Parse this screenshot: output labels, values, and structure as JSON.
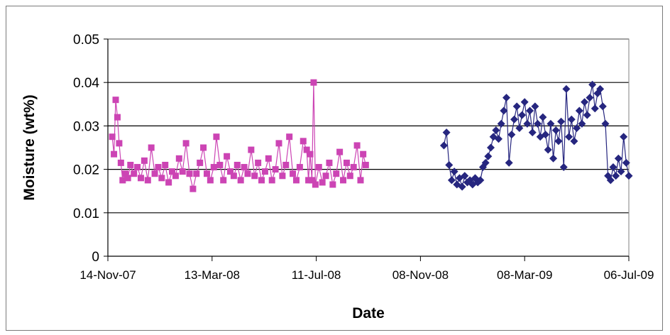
{
  "chart_data": {
    "type": "scatter",
    "title": "",
    "xlabel": "Date",
    "ylabel": "Moisture (wt%)",
    "ylim": [
      0,
      0.05
    ],
    "y_ticks": [
      "0",
      "0.01",
      "0.02",
      "0.03",
      "0.04",
      "0.05"
    ],
    "y_tick_values": [
      0,
      0.01,
      0.02,
      0.03,
      0.04,
      0.05
    ],
    "x_ticks": [
      "14-Nov-07",
      "13-Mar-08",
      "11-Jul-08",
      "08-Nov-08",
      "08-Mar-09",
      "06-Jul-09"
    ],
    "x_tick_values": [
      "2007-11-14",
      "2008-03-13",
      "2008-07-11",
      "2008-11-08",
      "2009-03-08",
      "2009-07-06"
    ],
    "xlim": [
      "2007-11-14",
      "2009-07-06"
    ],
    "grid": "horizontal major gridlines",
    "legend": "none",
    "series": [
      {
        "marker": "square",
        "color": "#cc44b4",
        "line": "thin connecting line",
        "points": [
          [
            "2007-11-19",
            0.0275
          ],
          [
            "2007-11-21",
            0.0235
          ],
          [
            "2007-11-23",
            0.036
          ],
          [
            "2007-11-25",
            0.032
          ],
          [
            "2007-11-27",
            0.026
          ],
          [
            "2007-11-29",
            0.0215
          ],
          [
            "2007-12-01",
            0.0175
          ],
          [
            "2007-12-04",
            0.019
          ],
          [
            "2007-12-07",
            0.018
          ],
          [
            "2007-12-10",
            0.021
          ],
          [
            "2007-12-14",
            0.019
          ],
          [
            "2007-12-18",
            0.0205
          ],
          [
            "2007-12-22",
            0.018
          ],
          [
            "2007-12-26",
            0.022
          ],
          [
            "2007-12-30",
            0.0175
          ],
          [
            "2008-01-03",
            0.025
          ],
          [
            "2008-01-07",
            0.019
          ],
          [
            "2008-01-11",
            0.0205
          ],
          [
            "2008-01-15",
            0.018
          ],
          [
            "2008-01-19",
            0.021
          ],
          [
            "2008-01-23",
            0.017
          ],
          [
            "2008-01-27",
            0.0195
          ],
          [
            "2008-01-31",
            0.0185
          ],
          [
            "2008-02-04",
            0.0225
          ],
          [
            "2008-02-08",
            0.0195
          ],
          [
            "2008-02-12",
            0.026
          ],
          [
            "2008-02-16",
            0.019
          ],
          [
            "2008-02-20",
            0.0155
          ],
          [
            "2008-02-24",
            0.019
          ],
          [
            "2008-02-28",
            0.0215
          ],
          [
            "2008-03-03",
            0.025
          ],
          [
            "2008-03-07",
            0.019
          ],
          [
            "2008-03-11",
            0.0175
          ],
          [
            "2008-03-15",
            0.0205
          ],
          [
            "2008-03-18",
            0.0275
          ],
          [
            "2008-03-22",
            0.021
          ],
          [
            "2008-03-26",
            0.0175
          ],
          [
            "2008-03-30",
            0.023
          ],
          [
            "2008-04-03",
            0.0195
          ],
          [
            "2008-04-07",
            0.0185
          ],
          [
            "2008-04-11",
            0.021
          ],
          [
            "2008-04-15",
            0.0175
          ],
          [
            "2008-04-19",
            0.0205
          ],
          [
            "2008-04-23",
            0.019
          ],
          [
            "2008-04-27",
            0.0245
          ],
          [
            "2008-05-01",
            0.0185
          ],
          [
            "2008-05-05",
            0.0215
          ],
          [
            "2008-05-09",
            0.0175
          ],
          [
            "2008-05-13",
            0.0195
          ],
          [
            "2008-05-17",
            0.0225
          ],
          [
            "2008-05-21",
            0.0175
          ],
          [
            "2008-05-25",
            0.02
          ],
          [
            "2008-05-29",
            0.026
          ],
          [
            "2008-06-02",
            0.0185
          ],
          [
            "2008-06-06",
            0.021
          ],
          [
            "2008-06-10",
            0.0275
          ],
          [
            "2008-06-14",
            0.019
          ],
          [
            "2008-06-18",
            0.0175
          ],
          [
            "2008-06-22",
            0.0205
          ],
          [
            "2008-06-26",
            0.0265
          ],
          [
            "2008-06-30",
            0.0245
          ],
          [
            "2008-07-02",
            0.0175
          ],
          [
            "2008-07-04",
            0.0235
          ],
          [
            "2008-07-06",
            0.0175
          ],
          [
            "2008-07-08",
            0.04
          ],
          [
            "2008-07-10",
            0.0165
          ],
          [
            "2008-07-14",
            0.0205
          ],
          [
            "2008-07-18",
            0.017
          ],
          [
            "2008-07-22",
            0.0185
          ],
          [
            "2008-07-26",
            0.0215
          ],
          [
            "2008-07-30",
            0.0165
          ],
          [
            "2008-08-03",
            0.019
          ],
          [
            "2008-08-07",
            0.024
          ],
          [
            "2008-08-11",
            0.0175
          ],
          [
            "2008-08-15",
            0.0215
          ],
          [
            "2008-08-19",
            0.0185
          ],
          [
            "2008-08-23",
            0.0205
          ],
          [
            "2008-08-27",
            0.0255
          ],
          [
            "2008-08-31",
            0.0175
          ],
          [
            "2008-09-03",
            0.0235
          ],
          [
            "2008-09-06",
            0.021
          ]
        ]
      },
      {
        "marker": "diamond",
        "color": "#26267f",
        "line": "thin connecting line",
        "points": [
          [
            "2008-12-05",
            0.0255
          ],
          [
            "2008-12-08",
            0.0285
          ],
          [
            "2008-12-11",
            0.021
          ],
          [
            "2008-12-14",
            0.0175
          ],
          [
            "2008-12-17",
            0.0195
          ],
          [
            "2008-12-20",
            0.0165
          ],
          [
            "2008-12-23",
            0.018
          ],
          [
            "2008-12-26",
            0.016
          ],
          [
            "2008-12-29",
            0.0185
          ],
          [
            "2009-01-01",
            0.017
          ],
          [
            "2009-01-04",
            0.0175
          ],
          [
            "2009-01-07",
            0.0165
          ],
          [
            "2009-01-10",
            0.018
          ],
          [
            "2009-01-13",
            0.017
          ],
          [
            "2009-01-16",
            0.0175
          ],
          [
            "2009-01-19",
            0.0205
          ],
          [
            "2009-01-22",
            0.0215
          ],
          [
            "2009-01-25",
            0.023
          ],
          [
            "2009-01-28",
            0.025
          ],
          [
            "2009-01-31",
            0.0275
          ],
          [
            "2009-02-03",
            0.029
          ],
          [
            "2009-02-06",
            0.027
          ],
          [
            "2009-02-09",
            0.0305
          ],
          [
            "2009-02-12",
            0.0335
          ],
          [
            "2009-02-15",
            0.0365
          ],
          [
            "2009-02-18",
            0.0215
          ],
          [
            "2009-02-21",
            0.028
          ],
          [
            "2009-02-24",
            0.0315
          ],
          [
            "2009-02-27",
            0.0345
          ],
          [
            "2009-03-02",
            0.0295
          ],
          [
            "2009-03-05",
            0.0325
          ],
          [
            "2009-03-08",
            0.0355
          ],
          [
            "2009-03-11",
            0.0305
          ],
          [
            "2009-03-14",
            0.0335
          ],
          [
            "2009-03-17",
            0.0285
          ],
          [
            "2009-03-20",
            0.0345
          ],
          [
            "2009-03-23",
            0.0305
          ],
          [
            "2009-03-26",
            0.0275
          ],
          [
            "2009-03-29",
            0.032
          ],
          [
            "2009-04-01",
            0.028
          ],
          [
            "2009-04-04",
            0.0245
          ],
          [
            "2009-04-07",
            0.0305
          ],
          [
            "2009-04-10",
            0.0225
          ],
          [
            "2009-04-13",
            0.029
          ],
          [
            "2009-04-16",
            0.0265
          ],
          [
            "2009-04-19",
            0.031
          ],
          [
            "2009-04-22",
            0.0205
          ],
          [
            "2009-04-25",
            0.0385
          ],
          [
            "2009-04-28",
            0.0275
          ],
          [
            "2009-05-01",
            0.0315
          ],
          [
            "2009-05-04",
            0.0265
          ],
          [
            "2009-05-07",
            0.0295
          ],
          [
            "2009-05-10",
            0.0335
          ],
          [
            "2009-05-13",
            0.0305
          ],
          [
            "2009-05-16",
            0.0355
          ],
          [
            "2009-05-19",
            0.0325
          ],
          [
            "2009-05-22",
            0.0365
          ],
          [
            "2009-05-25",
            0.0395
          ],
          [
            "2009-05-28",
            0.034
          ],
          [
            "2009-05-31",
            0.0375
          ],
          [
            "2009-06-03",
            0.0385
          ],
          [
            "2009-06-06",
            0.0345
          ],
          [
            "2009-06-09",
            0.0305
          ],
          [
            "2009-06-12",
            0.0185
          ],
          [
            "2009-06-15",
            0.0175
          ],
          [
            "2009-06-18",
            0.0205
          ],
          [
            "2009-06-21",
            0.0185
          ],
          [
            "2009-06-24",
            0.0225
          ],
          [
            "2009-06-27",
            0.0195
          ],
          [
            "2009-06-30",
            0.0275
          ],
          [
            "2009-07-03",
            0.0215
          ],
          [
            "2009-07-06",
            0.0185
          ]
        ]
      }
    ]
  }
}
